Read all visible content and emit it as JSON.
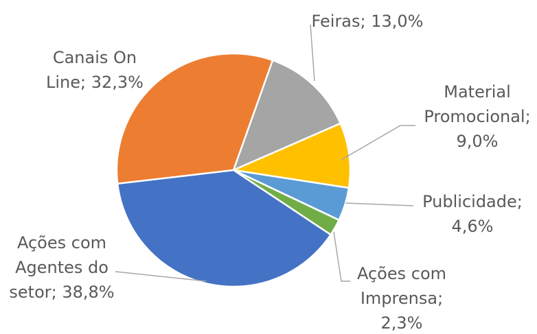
{
  "chart_data": {
    "type": "pie",
    "values": [
      13.0,
      9.0,
      4.6,
      2.3,
      38.8,
      32.3
    ],
    "value_labels": [
      [
        "Feiras; 13,0%"
      ],
      [
        "Material",
        "Promocional;",
        "9,0%"
      ],
      [
        "Publicidade;",
        "4,6%"
      ],
      [
        "Ações com",
        "Imprensa;",
        "2,3%"
      ],
      [
        "Ações com",
        "Agentes do",
        "setor; 38,8%"
      ],
      [
        "Canais On",
        "Line; 32,3%"
      ]
    ],
    "colors": [
      "#a5a5a5",
      "#ffc000",
      "#5b9bd5",
      "#70ad47",
      "#4472c4",
      "#ed7d31"
    ]
  }
}
